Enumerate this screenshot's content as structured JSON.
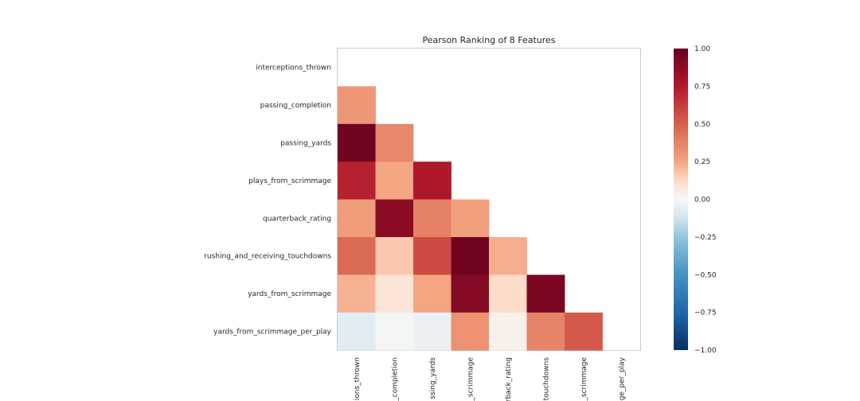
{
  "chart_data": {
    "type": "heatmap",
    "title": "Pearson Ranking of 8 Features",
    "features": [
      "interceptions_thrown",
      "passing_completion",
      "passing_yards",
      "plays_from_scrimmage",
      "quarterback_rating",
      "rushing_and_receiving_touchdowns",
      "yards_from_scrimmage",
      "yards_from_scrimmage_per_play"
    ],
    "x_tick_labels_visible": [
      "ions_thrown",
      "_completion",
      "ssing_yards",
      "_scrimmage",
      "rback_rating",
      "touchdowns",
      "_scrimmage",
      "ge_per_play"
    ],
    "matrix_lower_triangle": [
      [],
      [
        0.3
      ],
      [
        0.97,
        0.36
      ],
      [
        0.72,
        0.25,
        0.76
      ],
      [
        0.28,
        0.88,
        0.38,
        0.27
      ],
      [
        0.46,
        0.17,
        0.57,
        0.97,
        0.23
      ],
      [
        0.22,
        0.08,
        0.25,
        0.9,
        0.12,
        0.93
      ],
      [
        -0.07,
        -0.01,
        -0.04,
        0.32,
        0.03,
        0.37,
        0.52
      ]
    ],
    "colorbar": {
      "min": -1.0,
      "max": 1.0,
      "ticks": [
        "1.00",
        "0.75",
        "0.50",
        "0.25",
        "0.00",
        "−0.25",
        "−0.50",
        "−0.75",
        "−1.00"
      ]
    },
    "colormap": "RdBu_r",
    "grid": false
  }
}
